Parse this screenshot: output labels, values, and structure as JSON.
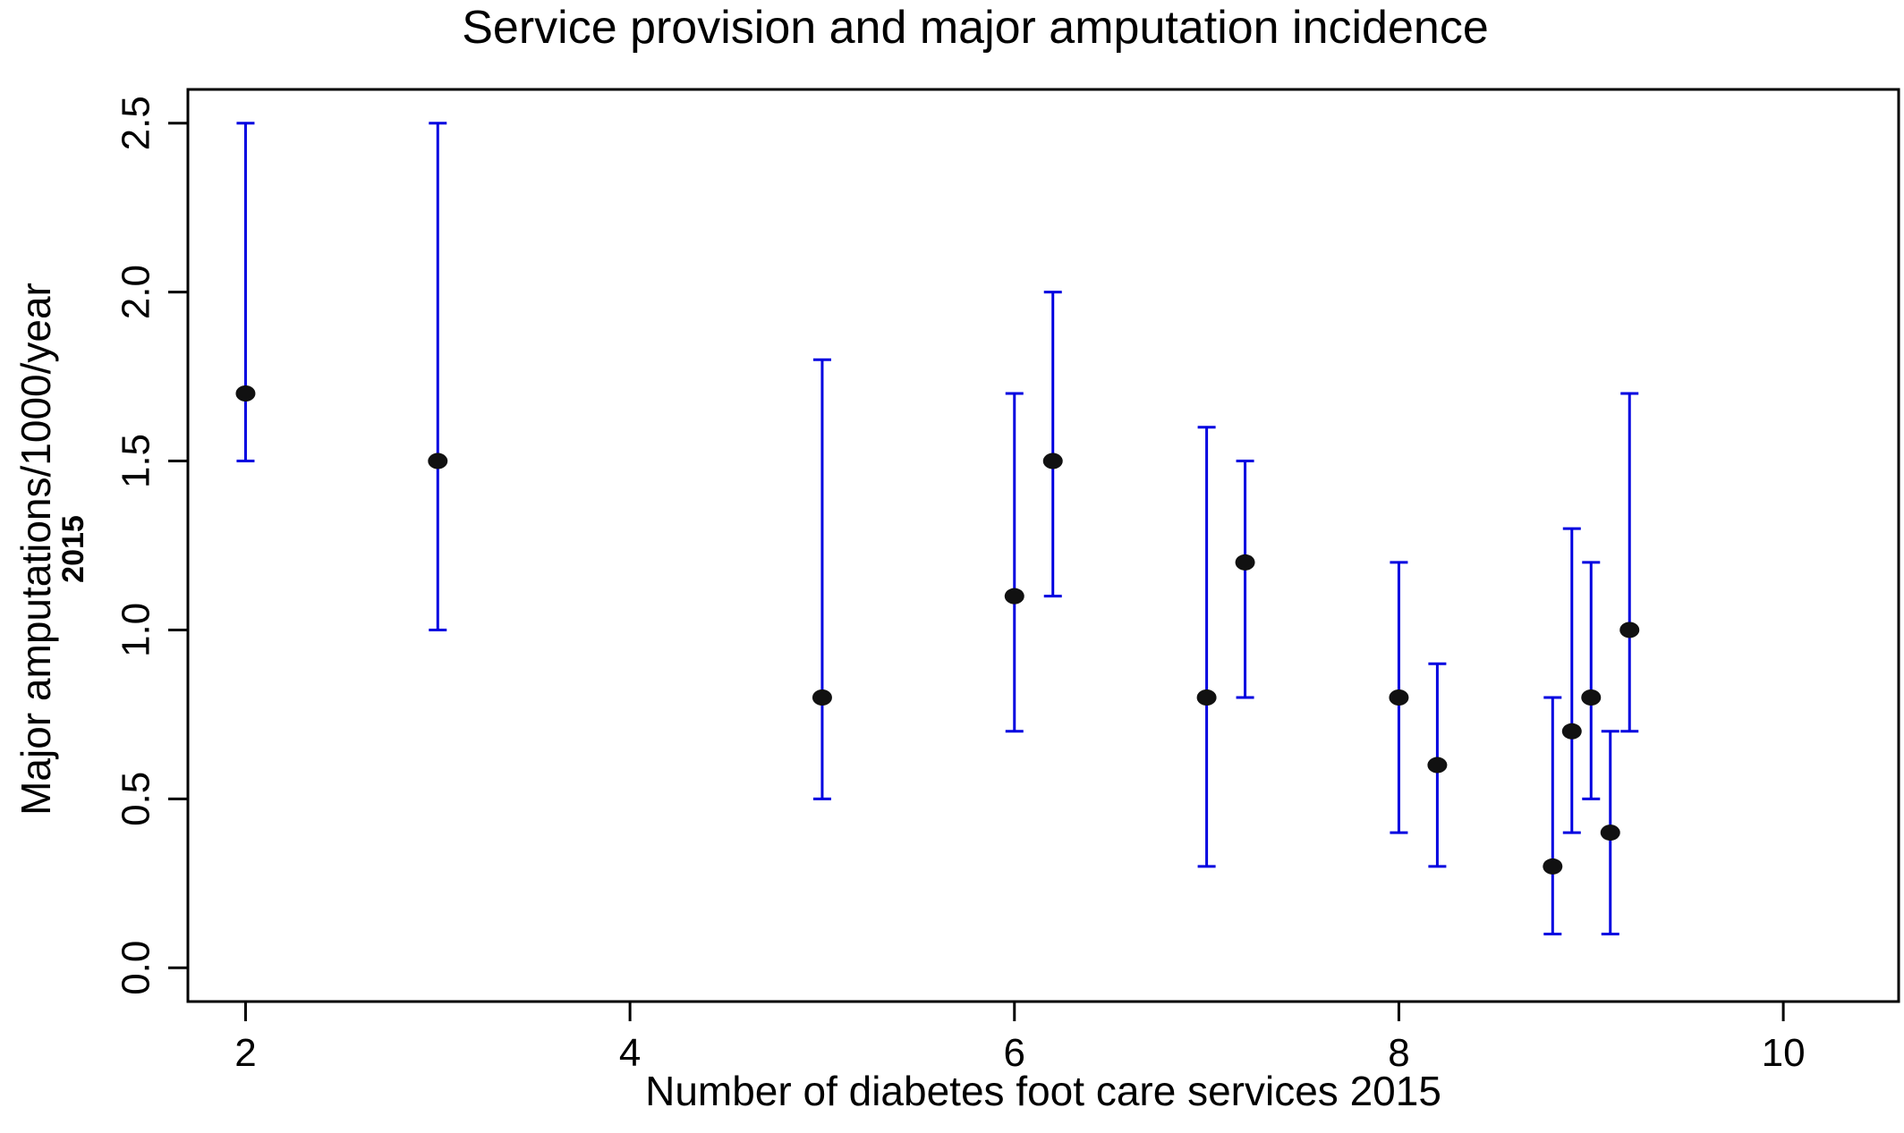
{
  "chart_data": {
    "type": "scatter",
    "title": "Service provision and major amputation incidence",
    "xlabel": "Number of diabetes foot care services 2015",
    "ylabel": "Major amputations/1000/year",
    "ylabel_sub": "2015",
    "xlim": [
      1.7,
      10.6
    ],
    "ylim": [
      -0.1,
      2.6
    ],
    "x_ticks": [
      "2",
      "4",
      "6",
      "8",
      "10"
    ],
    "y_ticks": [
      "0.0",
      "0.5",
      "1.0",
      "1.5",
      "2.0",
      "2.5"
    ],
    "grid": false,
    "legend": "none",
    "colors": {
      "point": "#111111",
      "error_bar": "#0000e0",
      "axis": "#000000"
    },
    "points": [
      {
        "x": 2.0,
        "y": 1.7,
        "low": 1.5,
        "high": 2.5
      },
      {
        "x": 3.0,
        "y": 1.5,
        "low": 1.0,
        "high": 2.5
      },
      {
        "x": 5.0,
        "y": 0.8,
        "low": 0.5,
        "high": 1.8
      },
      {
        "x": 6.0,
        "y": 1.1,
        "low": 0.7,
        "high": 1.7
      },
      {
        "x": 6.2,
        "y": 1.5,
        "low": 1.1,
        "high": 2.0
      },
      {
        "x": 7.0,
        "y": 0.8,
        "low": 0.3,
        "high": 1.6
      },
      {
        "x": 7.2,
        "y": 1.2,
        "low": 0.8,
        "high": 1.5
      },
      {
        "x": 8.0,
        "y": 0.8,
        "low": 0.4,
        "high": 1.2
      },
      {
        "x": 8.2,
        "y": 0.6,
        "low": 0.3,
        "high": 0.9
      },
      {
        "x": 8.8,
        "y": 0.3,
        "low": 0.1,
        "high": 0.8
      },
      {
        "x": 8.9,
        "y": 0.7,
        "low": 0.4,
        "high": 1.3
      },
      {
        "x": 9.0,
        "y": 0.8,
        "low": 0.5,
        "high": 1.2
      },
      {
        "x": 9.1,
        "y": 0.4,
        "low": 0.1,
        "high": 0.7
      },
      {
        "x": 9.2,
        "y": 1.0,
        "low": 0.7,
        "high": 1.7
      }
    ]
  }
}
